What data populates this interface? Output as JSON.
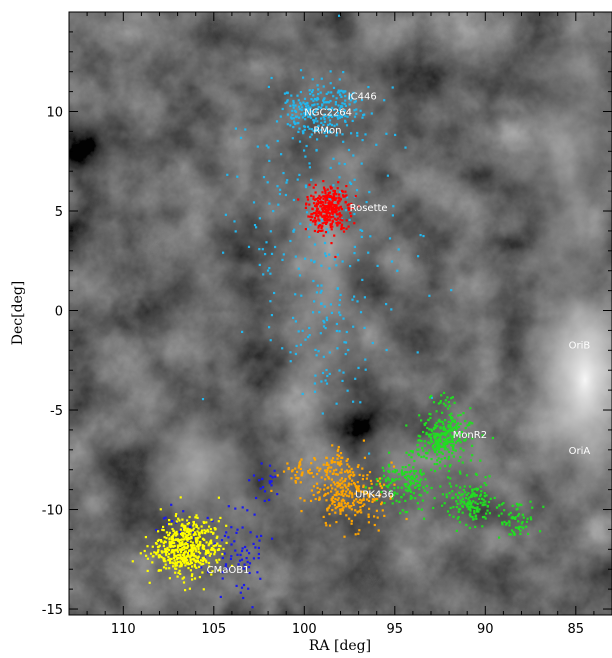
{
  "chart_data": {
    "type": "scatter",
    "xlabel": "RA [deg]",
    "ylabel": "Dec[deg]",
    "xlim": [
      113,
      83
    ],
    "ylim": [
      -15.3,
      15.0
    ],
    "xticks": [
      110,
      105,
      100,
      95,
      90,
      85
    ],
    "yticks": [
      10,
      5,
      0,
      -5,
      -10,
      -15
    ],
    "background": "grayscale dust emission map",
    "series": [
      {
        "color": "#22b7ee",
        "clusters": [
          {
            "ra": 99.6,
            "dec": 9.9,
            "sx": 0.9,
            "sy": 0.7,
            "n": 170
          },
          {
            "ra": 97.9,
            "dec": 10.4,
            "sx": 0.8,
            "sy": 0.7,
            "n": 80
          },
          {
            "ra": 99.3,
            "dec": 4.0,
            "sx": 2.8,
            "sy": 3.3,
            "n": 200
          },
          {
            "ra": 98.9,
            "dec": -1.3,
            "sx": 1.2,
            "sy": 1.6,
            "n": 70
          }
        ]
      },
      {
        "color": "#ff0000",
        "clusters": [
          {
            "ra": 98.6,
            "dec": 5.1,
            "sx": 0.55,
            "sy": 0.6,
            "n": 320
          }
        ]
      },
      {
        "color": "#22dd22",
        "clusters": [
          {
            "ra": 92.4,
            "dec": -6.5,
            "sx": 0.75,
            "sy": 0.6,
            "n": 260
          },
          {
            "ra": 94.4,
            "dec": -8.7,
            "sx": 0.8,
            "sy": 0.6,
            "n": 150
          },
          {
            "ra": 90.8,
            "dec": -9.7,
            "sx": 0.7,
            "sy": 0.55,
            "n": 160
          },
          {
            "ra": 88.3,
            "dec": -10.5,
            "sx": 0.5,
            "sy": 0.5,
            "n": 60
          },
          {
            "ra": 92.0,
            "dec": -4.9,
            "sx": 0.5,
            "sy": 0.5,
            "n": 30
          }
        ]
      },
      {
        "color": "#ffa500",
        "clusters": [
          {
            "ra": 97.5,
            "dec": -9.2,
            "sx": 0.95,
            "sy": 0.85,
            "n": 260
          },
          {
            "ra": 100.4,
            "dec": -8.2,
            "sx": 0.5,
            "sy": 0.4,
            "n": 40
          },
          {
            "ra": 98.4,
            "dec": -7.8,
            "sx": 0.5,
            "sy": 0.6,
            "n": 50
          }
        ]
      },
      {
        "color": "#1a1aee",
        "clusters": [
          {
            "ra": 103.4,
            "dec": -12.0,
            "sx": 0.7,
            "sy": 1.4,
            "n": 70
          },
          {
            "ra": 102.0,
            "dec": -8.6,
            "sx": 0.6,
            "sy": 0.6,
            "n": 20
          },
          {
            "ra": 106.6,
            "dec": -11.0,
            "sx": 0.6,
            "sy": 0.8,
            "n": 30
          }
        ]
      },
      {
        "color": "#ffff00",
        "clusters": [
          {
            "ra": 106.5,
            "dec": -11.9,
            "sx": 0.9,
            "sy": 0.7,
            "n": 520
          }
        ]
      }
    ],
    "annotations": [
      {
        "text": "IC446",
        "ra": 97.6,
        "dec": 10.6
      },
      {
        "text": "NGC2264",
        "ra": 100.0,
        "dec": 9.8
      },
      {
        "text": "RMon",
        "ra": 99.5,
        "dec": 8.9
      },
      {
        "text": "Rosette",
        "ra": 97.5,
        "dec": 5.0
      },
      {
        "text": "OriB",
        "ra": 85.4,
        "dec": -1.9
      },
      {
        "text": "MonR2",
        "ra": 91.8,
        "dec": -6.4
      },
      {
        "text": "OriA",
        "ra": 85.4,
        "dec": -7.2
      },
      {
        "text": "UPK436",
        "ra": 97.2,
        "dec": -9.4
      },
      {
        "text": "CMaOB1",
        "ra": 105.4,
        "dec": -13.2
      }
    ]
  }
}
